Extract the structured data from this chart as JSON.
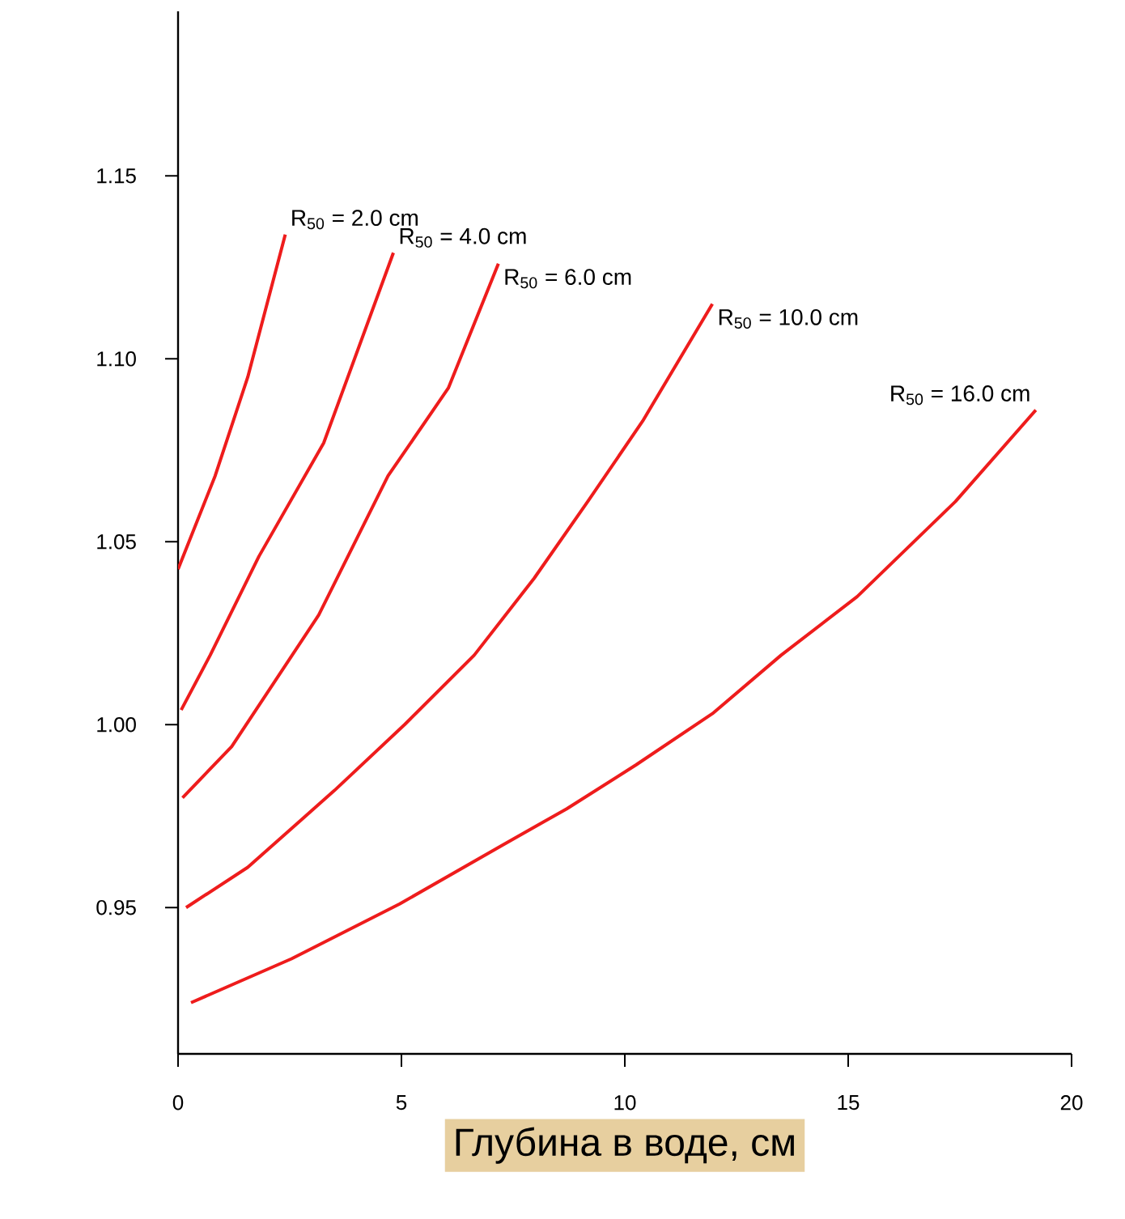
{
  "chart_data": {
    "type": "line",
    "xlabel": "Глубина в воде, см",
    "xlim": [
      0,
      20
    ],
    "ylim": [
      0.91,
      1.195
    ],
    "xticks": [
      0,
      5,
      10,
      15,
      20
    ],
    "yticks": [
      0.95,
      {
        "value": 1.0,
        "label": "1.00"
      },
      1.05,
      {
        "value": 1.1,
        "label": "1.10"
      },
      1.15
    ],
    "grid": false,
    "marker": "none",
    "line_style": "solid",
    "series": [
      {
        "name": "R$_{50}$ = 2.0 cm",
        "color": "#ee1c1c",
        "x": [
          0.0,
          0.83,
          1.56,
          2.4
        ],
        "values": [
          1.0425,
          1.068,
          1.095,
          1.134
        ]
      },
      {
        "name": "R$_{50}$ = 4.0 cm",
        "color": "#ee1c1c",
        "x": [
          0.07,
          0.72,
          1.81,
          3.26,
          4.82
        ],
        "values": [
          1.004,
          1.019,
          1.046,
          1.077,
          1.129
        ]
      },
      {
        "name": "R$_{50}$ = 6.0 cm",
        "color": "#ee1c1c",
        "x": [
          0.1,
          1.2,
          3.15,
          4.7,
          6.05,
          7.17
        ],
        "values": [
          0.98,
          0.994,
          1.03,
          1.068,
          1.092,
          1.126
        ]
      },
      {
        "name": "R$_{50}$ = 10.0 cm",
        "color": "#ee1c1c",
        "x": [
          0.18,
          1.56,
          3.5,
          5.07,
          6.63,
          7.97,
          9.17,
          10.4,
          11.96
        ],
        "values": [
          0.95,
          0.961,
          0.982,
          1.0,
          1.019,
          1.04,
          1.061,
          1.083,
          1.115
        ]
      },
      {
        "name": "R$_{50}$ = 16.0 cm",
        "color": "#ee1c1c",
        "x": [
          0.29,
          2.54,
          4.96,
          7.25,
          8.7,
          10.25,
          11.96,
          13.5,
          15.2,
          17.4,
          19.2
        ],
        "values": [
          0.924,
          0.936,
          0.951,
          0.967,
          0.977,
          0.989,
          1.003,
          1.019,
          1.035,
          1.061,
          1.086
        ]
      }
    ]
  }
}
